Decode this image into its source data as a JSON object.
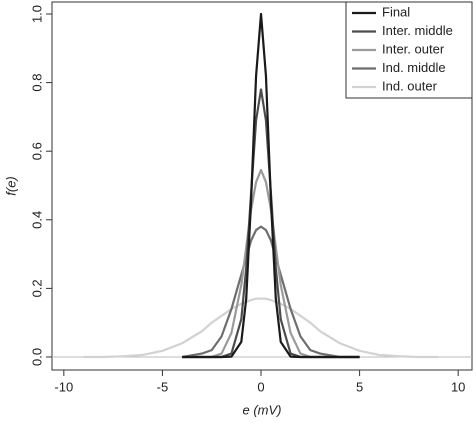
{
  "chart_data": {
    "type": "line",
    "x_label": "e (mV)",
    "y_label": "f(e)",
    "x": [
      -9,
      -8,
      -7,
      -6,
      -5,
      -4,
      -3,
      -2.5,
      -2,
      -1.5,
      -1,
      -0.75,
      -0.5,
      -0.25,
      0,
      0.25,
      0.5,
      0.75,
      1,
      1.5,
      2,
      2.5,
      3,
      4,
      5,
      6,
      7,
      8,
      9
    ],
    "series": [
      {
        "name": "Final",
        "color": "#1a1a1a",
        "values": [
          null,
          null,
          null,
          null,
          null,
          0,
          0,
          0,
          0,
          0.001,
          0.044,
          0.17,
          0.46,
          0.82,
          1.0,
          0.82,
          0.46,
          0.17,
          0.044,
          0.001,
          0,
          0,
          0,
          0,
          0,
          null,
          null,
          null,
          null
        ]
      },
      {
        "name": "Inter. middle",
        "color": "#4d4d4d",
        "values": [
          null,
          null,
          null,
          null,
          null,
          0,
          0,
          0,
          0,
          0.01,
          0.11,
          0.26,
          0.48,
          0.69,
          0.78,
          0.69,
          0.48,
          0.26,
          0.11,
          0.01,
          0,
          0,
          0,
          0,
          0,
          null,
          null,
          null,
          null
        ]
      },
      {
        "name": "Inter. outer",
        "color": "#9a9a9a",
        "values": [
          null,
          null,
          null,
          null,
          null,
          0,
          0,
          0,
          0.01,
          0.07,
          0.21,
          0.32,
          0.43,
          0.51,
          0.545,
          0.51,
          0.43,
          0.32,
          0.21,
          0.07,
          0.01,
          0,
          0,
          0,
          0,
          null,
          null,
          null,
          null
        ]
      },
      {
        "name": "Ind. middle",
        "color": "#6e6e6e",
        "values": [
          null,
          null,
          null,
          null,
          null,
          0,
          0.01,
          0.02,
          0.06,
          0.14,
          0.24,
          0.29,
          0.34,
          0.37,
          0.38,
          0.37,
          0.34,
          0.29,
          0.24,
          0.14,
          0.06,
          0.02,
          0.01,
          0,
          0,
          null,
          null,
          null,
          null
        ]
      },
      {
        "name": "Ind. outer",
        "color": "#d2d2d2",
        "values": [
          0,
          0,
          0.002,
          0.006,
          0.018,
          0.04,
          0.075,
          0.1,
          0.12,
          0.14,
          0.155,
          0.16,
          0.166,
          0.17,
          0.17,
          0.17,
          0.166,
          0.16,
          0.155,
          0.14,
          0.12,
          0.1,
          0.075,
          0.04,
          0.018,
          0.006,
          0.002,
          0,
          0
        ]
      }
    ],
    "xlim": [
      -10.6,
      10.7
    ],
    "ylim": [
      -0.038,
      1.035
    ],
    "xticks": [
      -10,
      -5,
      0,
      5,
      10
    ],
    "yticks": [
      {
        "value": 0,
        "label": "0.0"
      },
      {
        "value": 0.2,
        "label": "0.2"
      },
      {
        "value": 0.4,
        "label": "0.4"
      },
      {
        "value": 0.6,
        "label": "0.6"
      },
      {
        "value": 0.8,
        "label": "0.8"
      },
      {
        "value": 1.0,
        "label": "1.0"
      }
    ],
    "hline": 0,
    "legend": "top-right"
  }
}
